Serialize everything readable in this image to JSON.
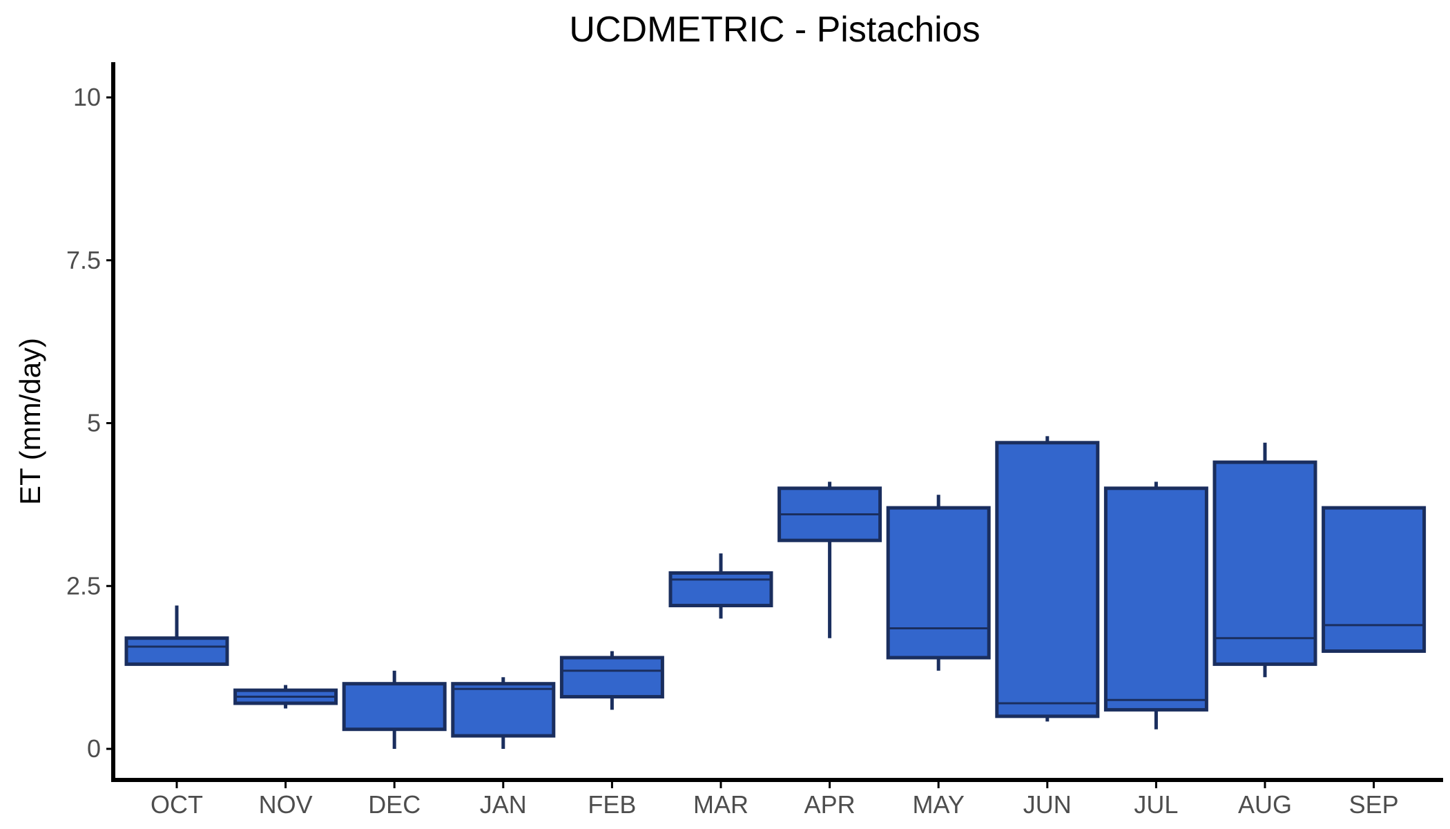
{
  "chart_data": {
    "type": "boxplot",
    "title": "UCDMETRIC - Pistachios",
    "xlabel": "",
    "ylabel": "ET (mm/day)",
    "ylim": [
      -0.5,
      10.5
    ],
    "yticks": [
      0,
      2.5,
      5,
      7.5,
      10
    ],
    "ytick_labels": [
      "0",
      "2.5",
      "5",
      "7.5",
      "10"
    ],
    "grid": false,
    "legend": "none",
    "categories": [
      "OCT",
      "NOV",
      "DEC",
      "JAN",
      "FEB",
      "MAR",
      "APR",
      "MAY",
      "JUN",
      "JUL",
      "AUG",
      "SEP"
    ],
    "boxes": [
      {
        "label": "OCT",
        "min": 1.3,
        "q1": 1.3,
        "median": 1.57,
        "q3": 1.7,
        "max": 2.2
      },
      {
        "label": "NOV",
        "min": 0.62,
        "q1": 0.7,
        "median": 0.8,
        "q3": 0.9,
        "max": 0.98
      },
      {
        "label": "DEC",
        "min": 0.0,
        "q1": 0.3,
        "median": 0.3,
        "q3": 1.0,
        "max": 1.2
      },
      {
        "label": "JAN",
        "min": 0.0,
        "q1": 0.2,
        "median": 0.92,
        "q3": 1.0,
        "max": 1.1
      },
      {
        "label": "FEB",
        "min": 0.6,
        "q1": 0.8,
        "median": 1.2,
        "q3": 1.4,
        "max": 1.5
      },
      {
        "label": "MAR",
        "min": 2.0,
        "q1": 2.2,
        "median": 2.6,
        "q3": 2.7,
        "max": 3.0
      },
      {
        "label": "APR",
        "min": 1.7,
        "q1": 3.2,
        "median": 3.6,
        "q3": 4.0,
        "max": 4.1
      },
      {
        "label": "MAY",
        "min": 1.2,
        "q1": 1.4,
        "median": 1.85,
        "q3": 3.7,
        "max": 3.9
      },
      {
        "label": "JUN",
        "min": 0.42,
        "q1": 0.5,
        "median": 0.7,
        "q3": 4.7,
        "max": 4.8
      },
      {
        "label": "JUL",
        "min": 0.3,
        "q1": 0.6,
        "median": 0.75,
        "q3": 4.0,
        "max": 4.1
      },
      {
        "label": "AUG",
        "min": 1.1,
        "q1": 1.3,
        "median": 1.7,
        "q3": 4.4,
        "max": 4.7
      },
      {
        "label": "SEP",
        "min": 1.5,
        "q1": 1.5,
        "median": 1.9,
        "q3": 3.7,
        "max": 3.7
      }
    ],
    "colors": {
      "box_fill": "#3366cc",
      "box_stroke": "#1a2e5e",
      "axis": "#000000",
      "tick_label": "#4d4d4d"
    }
  }
}
